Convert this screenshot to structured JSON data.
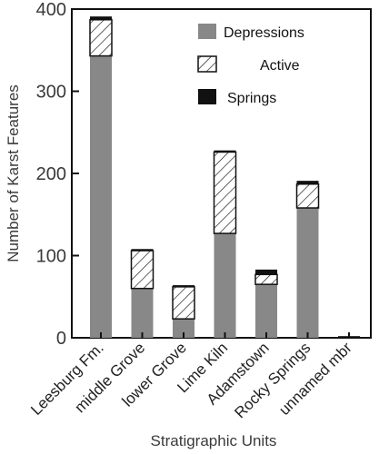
{
  "chart_data": {
    "type": "bar",
    "stacked": true,
    "title": "",
    "xlabel": "Stratigraphic Units",
    "ylabel": "Number of Karst Features",
    "ylim": [
      0,
      400
    ],
    "yticks": [
      "0",
      "100",
      "200",
      "300",
      "400"
    ],
    "categories": [
      "Leesburg Fm.",
      "middle Grove",
      "lower Grove",
      "Lime Kiln",
      "Adamstown",
      "Rocky Springs",
      "unnamed mbr"
    ],
    "series": [
      {
        "name": "Depressions",
        "values": [
          343,
          60,
          23,
          127,
          65,
          158,
          0
        ],
        "color": "#888888",
        "pattern": "solid"
      },
      {
        "name": "Active",
        "values": [
          44,
          46,
          39,
          99,
          12,
          29,
          0
        ],
        "color": "#ffffff",
        "pattern": "hatched"
      },
      {
        "name": "Springs",
        "values": [
          4,
          2,
          2,
          2,
          6,
          4,
          2
        ],
        "color": "#111111",
        "pattern": "solid"
      }
    ],
    "legend": {
      "position": "top-right"
    },
    "grid": false
  }
}
